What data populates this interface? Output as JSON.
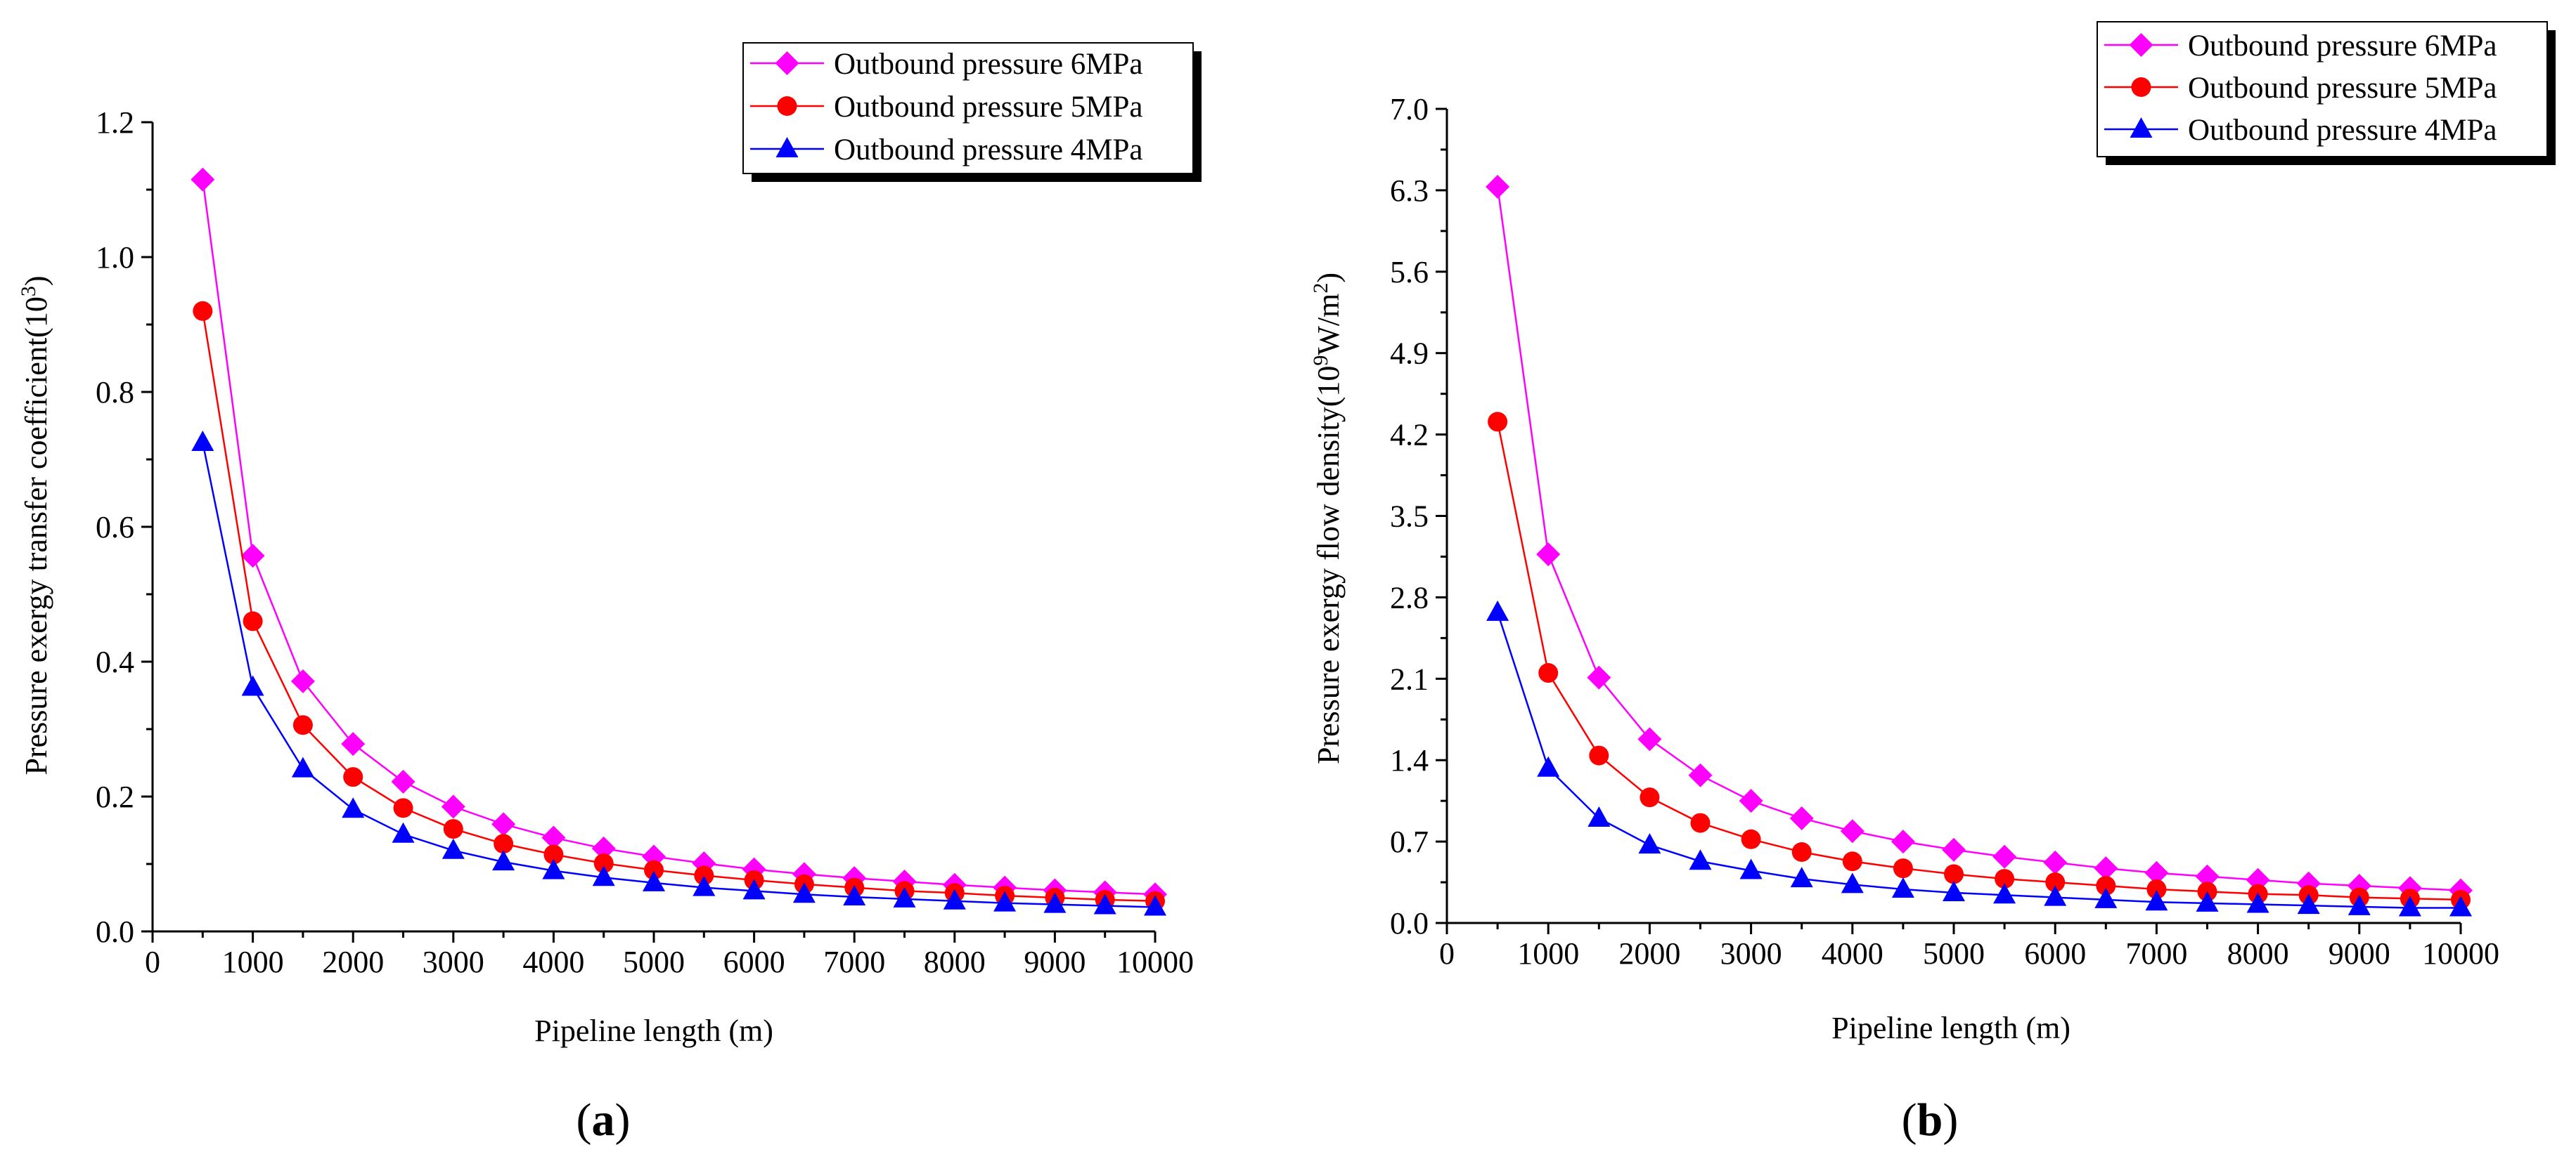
{
  "figure": {
    "panel_a_label": "a",
    "panel_b_label": "b"
  },
  "chart_data": [
    {
      "type": "line",
      "panel": "a",
      "title": "",
      "xlabel": "Pipeline length (m)",
      "ylabel": "Pressure exergy transfer coefficient(10",
      "ylabel_sup": "3",
      "ylabel_close": ")",
      "xlim": [
        0,
        10000
      ],
      "ylim": [
        0,
        1.2
      ],
      "xticks": [
        "0",
        "1000",
        "2000",
        "3000",
        "4000",
        "5000",
        "6000",
        "7000",
        "8000",
        "9000",
        "10000"
      ],
      "yticks": [
        "0.0",
        "0.2",
        "0.4",
        "0.6",
        "0.8",
        "1.0",
        "1.2"
      ],
      "legend_position": "top-right",
      "x": [
        500,
        1000,
        1500,
        2000,
        2500,
        3000,
        3500,
        4000,
        4500,
        5000,
        5500,
        6000,
        6500,
        7000,
        7500,
        8000,
        8500,
        9000,
        9500,
        10000
      ],
      "series": [
        {
          "name": "Outbound pressure 6MPa",
          "color": "#ff00ff",
          "marker": "diamond",
          "values": [
            1.115,
            0.557,
            0.371,
            0.278,
            0.222,
            0.185,
            0.159,
            0.139,
            0.123,
            0.111,
            0.101,
            0.092,
            0.085,
            0.079,
            0.074,
            0.069,
            0.065,
            0.061,
            0.058,
            0.055
          ]
        },
        {
          "name": "Outbound pressure 5MPa",
          "color": "#ff0000",
          "marker": "circle",
          "values": [
            0.92,
            0.46,
            0.306,
            0.229,
            0.183,
            0.152,
            0.13,
            0.114,
            0.101,
            0.091,
            0.083,
            0.076,
            0.07,
            0.065,
            0.06,
            0.057,
            0.053,
            0.05,
            0.047,
            0.045
          ]
        },
        {
          "name": "Outbound pressure 4MPa",
          "color": "#0000ff",
          "marker": "triangle",
          "values": [
            0.725,
            0.362,
            0.241,
            0.181,
            0.144,
            0.12,
            0.103,
            0.09,
            0.08,
            0.072,
            0.065,
            0.06,
            0.055,
            0.051,
            0.048,
            0.045,
            0.042,
            0.04,
            0.038,
            0.036
          ]
        }
      ]
    },
    {
      "type": "line",
      "panel": "b",
      "title": "",
      "xlabel": "Pipeline length (m)",
      "ylabel": "Pressure exergy flow density(10",
      "ylabel_sup": "9",
      "ylabel_mid": "W/m",
      "ylabel_sup2": "2",
      "ylabel_close": ")",
      "xlim": [
        0,
        10000
      ],
      "ylim": [
        0,
        7.0
      ],
      "xticks": [
        "0",
        "1000",
        "2000",
        "3000",
        "4000",
        "5000",
        "6000",
        "7000",
        "8000",
        "9000",
        "10000"
      ],
      "yticks": [
        "0.0",
        "0.7",
        "1.4",
        "2.1",
        "2.8",
        "3.5",
        "4.2",
        "4.9",
        "5.6",
        "6.3",
        "7.0"
      ],
      "legend_position": "top-right",
      "x": [
        500,
        1000,
        1500,
        2000,
        2500,
        3000,
        3500,
        4000,
        4500,
        5000,
        5500,
        6000,
        6500,
        7000,
        7500,
        8000,
        8500,
        9000,
        9500,
        10000
      ],
      "series": [
        {
          "name": "Outbound pressure 6MPa",
          "color": "#ff00ff",
          "marker": "diamond",
          "values": [
            6.33,
            3.17,
            2.11,
            1.58,
            1.27,
            1.05,
            0.9,
            0.79,
            0.7,
            0.63,
            0.57,
            0.52,
            0.47,
            0.43,
            0.4,
            0.37,
            0.34,
            0.32,
            0.3,
            0.28
          ]
        },
        {
          "name": "Outbound pressure 5MPa",
          "color": "#ff0000",
          "marker": "circle",
          "values": [
            4.31,
            2.15,
            1.44,
            1.08,
            0.86,
            0.72,
            0.61,
            0.53,
            0.47,
            0.42,
            0.38,
            0.35,
            0.32,
            0.29,
            0.27,
            0.25,
            0.24,
            0.22,
            0.21,
            0.2
          ]
        },
        {
          "name": "Outbound pressure 4MPa",
          "color": "#0000ff",
          "marker": "triangle",
          "values": [
            2.67,
            1.33,
            0.9,
            0.67,
            0.53,
            0.45,
            0.38,
            0.33,
            0.29,
            0.26,
            0.24,
            0.22,
            0.2,
            0.18,
            0.17,
            0.16,
            0.15,
            0.14,
            0.13,
            0.13
          ]
        }
      ]
    }
  ]
}
